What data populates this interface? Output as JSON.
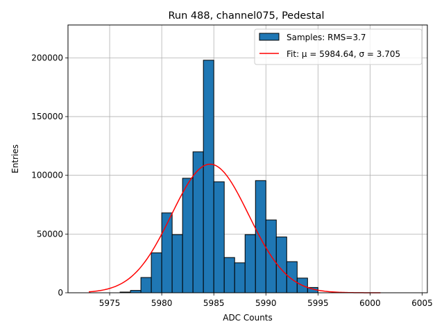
{
  "chart_data": {
    "type": "bar",
    "title": "Run 488, channel075, Pedestal",
    "xlabel": "ADC Counts",
    "ylabel": "Entries",
    "xlim": [
      5971.0,
      6005.5
    ],
    "ylim": [
      0,
      228000
    ],
    "grid": true,
    "legend_position": "top-right",
    "x_ticks": [
      5975,
      5980,
      5985,
      5990,
      5995,
      6000,
      6005
    ],
    "y_ticks": [
      0,
      50000,
      100000,
      150000,
      200000
    ],
    "bin_width": 1,
    "histogram": {
      "name": "Samples: RMS=3.7",
      "color": "#1f77b4",
      "bin_left_edges": [
        5976,
        5977,
        5978,
        5979,
        5980,
        5981,
        5982,
        5983,
        5984,
        5985,
        5986,
        5987,
        5988,
        5989,
        5990,
        5991,
        5992,
        5993,
        5994
      ],
      "counts": [
        600,
        2000,
        13000,
        34000,
        68000,
        49500,
        97500,
        120000,
        198000,
        94500,
        30000,
        25500,
        49500,
        95500,
        62000,
        47500,
        26500,
        12500,
        4500
      ]
    },
    "fit": {
      "name": "Fit: μ = 5984.64, σ = 3.705",
      "color": "#ff0000",
      "mu": 5984.64,
      "sigma": 3.705,
      "amplitude": 109500,
      "x_range": [
        5973,
        6001
      ]
    }
  }
}
